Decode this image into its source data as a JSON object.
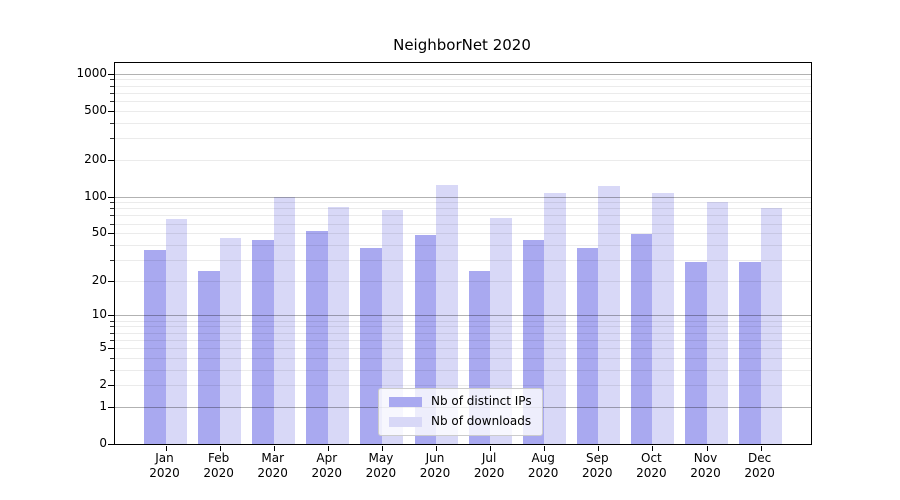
{
  "figure": {
    "background": "#ffffff"
  },
  "chart_data": {
    "type": "bar",
    "title": "NeighborNet 2020",
    "categories": [
      "Jan",
      "Feb",
      "Mar",
      "Apr",
      "May",
      "Jun",
      "Jul",
      "Aug",
      "Sep",
      "Oct",
      "Nov",
      "Dec"
    ],
    "year_label": "2020",
    "series": [
      {
        "name": "Nb of distinct IPs",
        "color": "#a9a9f0",
        "values": [
          36,
          24,
          44,
          52,
          38,
          48,
          24,
          44,
          38,
          49,
          29,
          29
        ]
      },
      {
        "name": "Nb of downloads",
        "color": "#d8d8f7",
        "values": [
          65,
          46,
          100,
          82,
          78,
          125,
          67,
          107,
          123,
          108,
          90,
          80
        ]
      }
    ],
    "xlabel": "",
    "ylabel": "",
    "yscale": "log1p",
    "ylim": [
      0,
      1220
    ],
    "ytick_values": [
      1000,
      500,
      200,
      100,
      50,
      20,
      10,
      5,
      2,
      1,
      0
    ],
    "ytick_labels": [
      "1000",
      "500",
      "200",
      "100",
      "50",
      "20",
      "10",
      "5",
      "2",
      "1",
      "0"
    ],
    "grid": {
      "orientation": "horizontal",
      "major_values": [
        1,
        10,
        100,
        1000
      ],
      "minor_values": [
        2,
        3,
        4,
        5,
        6,
        7,
        8,
        9,
        20,
        30,
        40,
        50,
        60,
        70,
        80,
        90,
        200,
        300,
        400,
        500,
        600,
        700,
        800,
        900
      ],
      "major_color": "rgba(0,0,0,0.30)",
      "minor_color": "rgba(0,0,0,0.08)",
      "drawn_above_bars": true
    },
    "legend": {
      "position": "lower-center-inside"
    }
  }
}
